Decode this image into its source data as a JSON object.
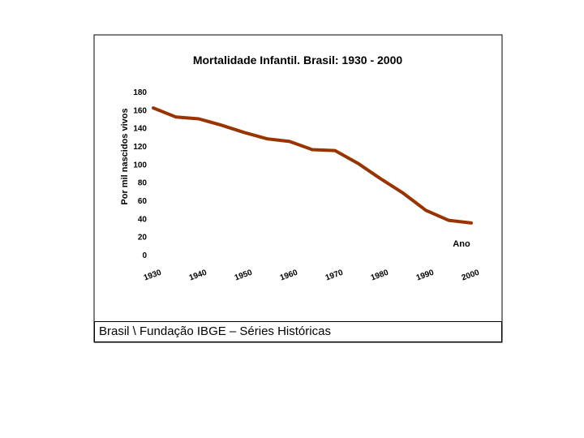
{
  "chart_data": {
    "type": "line",
    "title": "Mortalidade Infantil. Brasil: 1930 - 2000",
    "xlabel": "Ano",
    "ylabel": "Por mil nascidos vivos",
    "ylim": [
      0,
      180
    ],
    "yticks": [
      "0",
      "20",
      "40",
      "60",
      "80",
      "100",
      "120",
      "140",
      "160",
      "180"
    ],
    "xticks": [
      "1930",
      "1940",
      "1950",
      "1960",
      "1970",
      "1980",
      "1990",
      "2000"
    ],
    "x": [
      1930,
      1935,
      1940,
      1945,
      1950,
      1955,
      1960,
      1965,
      1970,
      1975,
      1980,
      1985,
      1990,
      1995,
      2000
    ],
    "series": [
      {
        "name": "",
        "values": [
          162,
          152,
          150,
          143,
          135,
          128,
          125,
          116,
          115,
          101,
          84,
          68,
          49,
          38,
          35
        ]
      }
    ],
    "grid": false,
    "legend": "none",
    "line_color": "#993300"
  },
  "caption": "Brasil \\ Fundação IBGE – Séries Históricas"
}
